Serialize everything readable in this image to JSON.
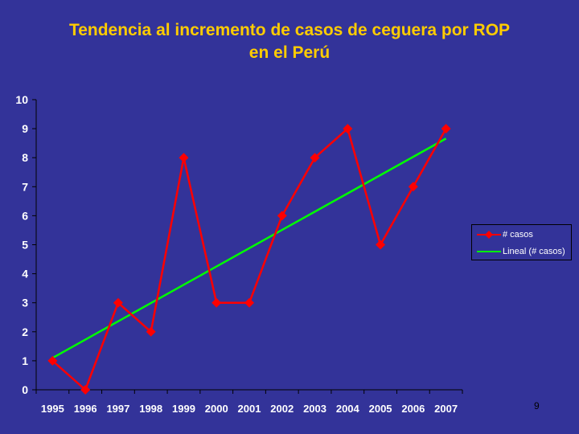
{
  "chart_data": {
    "type": "line",
    "title_lines": [
      "Tendencia al incremento de casos de ceguera por ROP",
      "en el Perú"
    ],
    "categories": [
      "1995",
      "1996",
      "1997",
      "1998",
      "1999",
      "2000",
      "2001",
      "2002",
      "2003",
      "2004",
      "2005",
      "2006",
      "2007"
    ],
    "series": [
      {
        "name": "# casos",
        "values": [
          1,
          0,
          3,
          2,
          8,
          3,
          3,
          6,
          8,
          9,
          5,
          7,
          9
        ],
        "color": "#ff0000",
        "marker": "diamond"
      },
      {
        "name": "Lineal (# casos)",
        "values": [
          1.1,
          1.73,
          2.36,
          2.99,
          3.62,
          4.25,
          4.88,
          5.51,
          6.14,
          6.77,
          7.4,
          8.03,
          8.66
        ],
        "color": "#00ff00",
        "marker": "none"
      }
    ],
    "ylim": [
      0,
      10
    ],
    "yticks": [
      0,
      1,
      2,
      3,
      4,
      5,
      6,
      7,
      8,
      9,
      10
    ],
    "grid": false,
    "legend_position": "right",
    "axis_color": "#000000",
    "tick_label_color": "#ffffff",
    "title_color": "#ffcc00"
  },
  "slide_number": "9"
}
